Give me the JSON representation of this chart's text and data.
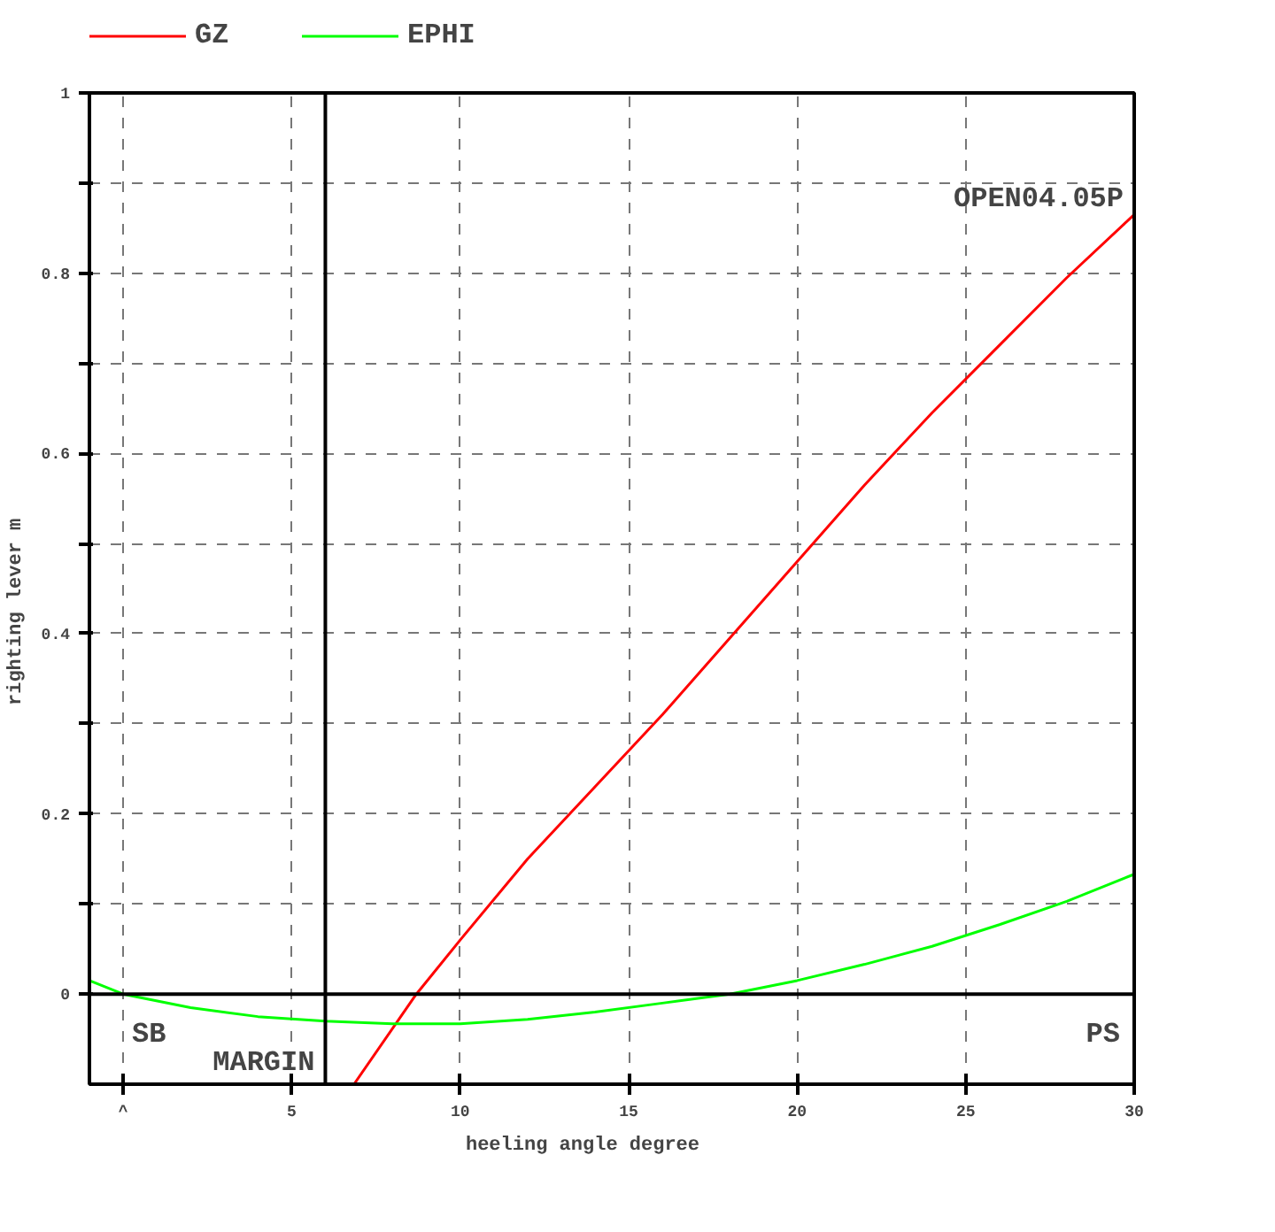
{
  "chart_data": {
    "type": "line",
    "xlabel": "heeling angle      degree",
    "ylabel": "righting lever     m",
    "xlim": [
      -1,
      30
    ],
    "ylim": [
      -0.1,
      1
    ],
    "xticks": [
      {
        "value": 0,
        "label": "^"
      },
      5,
      10,
      15,
      20,
      25,
      30
    ],
    "yticks": [
      0,
      {
        "value": 0.1,
        "label": null
      },
      0.2,
      {
        "value": 0.3,
        "label": null
      },
      0.4,
      {
        "value": 0.5,
        "label": null
      },
      0.6,
      {
        "value": 0.7,
        "label": null
      },
      0.8,
      {
        "value": 0.9,
        "label": null
      },
      1
    ],
    "grid": true,
    "legend": "top left",
    "series": [
      {
        "name": "GZ",
        "color": "#ff0000",
        "x": [
          6.85,
          8.7,
          10,
          12,
          14,
          16,
          18,
          20,
          22,
          24,
          26,
          28,
          30
        ],
        "values": [
          -0.1,
          0,
          0.06,
          0.15,
          0.23,
          0.31,
          0.395,
          0.48,
          0.565,
          0.645,
          0.72,
          0.795,
          0.865
        ]
      },
      {
        "name": "EPHI",
        "color": "#00ff00",
        "x": [
          -1,
          0,
          2,
          4,
          6,
          8,
          10,
          12,
          14,
          16,
          18,
          20,
          22,
          24,
          26,
          28,
          30
        ],
        "values": [
          0.015,
          0,
          -0.015,
          -0.025,
          -0.03,
          -0.033,
          -0.033,
          -0.028,
          -0.02,
          -0.01,
          0,
          0.015,
          0.033,
          0.053,
          0.077,
          0.103,
          0.133
        ]
      }
    ],
    "ref_lines": [
      {
        "axis": "y",
        "value": 0
      },
      {
        "axis": "x",
        "value": 6,
        "label": "MARGIN"
      },
      {
        "axis": "x",
        "value": 30,
        "label": "OPEN04.05P"
      }
    ],
    "annotations": [
      "SB",
      "PS"
    ]
  }
}
